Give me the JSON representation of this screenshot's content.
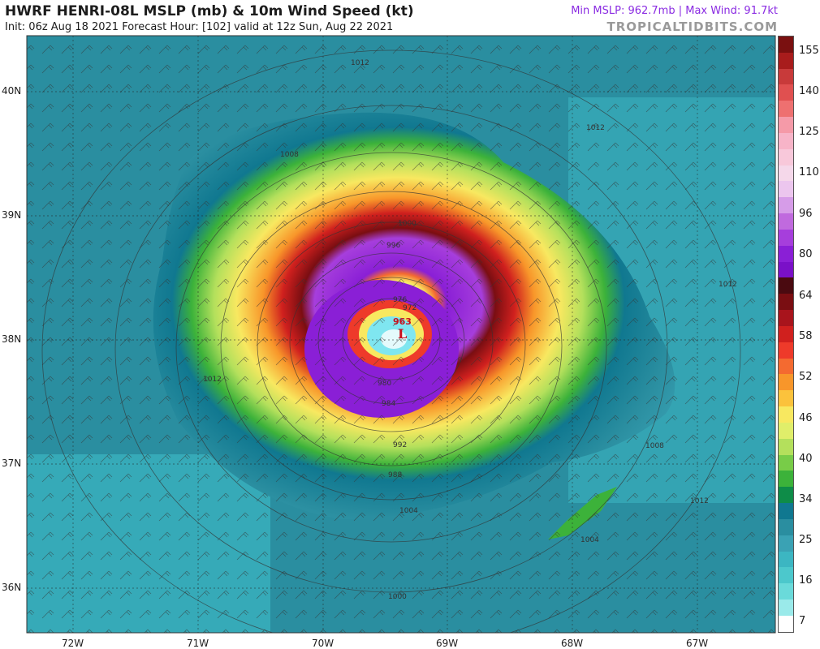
{
  "header": {
    "title": "HWRF HENRI-08L MSLP (mb) & 10m Wind Speed (kt)",
    "subtitle": "Init: 06z Aug 18 2021    Forecast Hour: [102]    valid at 12z Sun, Aug 22 2021",
    "stats": "Min MSLP: 962.7mb | Max Wind: 91.7kt",
    "watermark": "TROPICALTIDBITS.COM",
    "stats_color": "#8a2be2"
  },
  "map": {
    "center_marker": {
      "label": "L",
      "pressure": "963"
    },
    "latitude_labels": [
      "40N",
      "39N",
      "38N",
      "37N",
      "36N"
    ],
    "longitude_labels": [
      "72W",
      "71W",
      "70W",
      "69W",
      "68W",
      "67W"
    ],
    "isobar_labels": [
      "1012",
      "1012",
      "1008",
      "1004",
      "1000",
      "996",
      "992",
      "988",
      "984",
      "980",
      "976",
      "972",
      "1012",
      "1008",
      "1004",
      "1000",
      "1012",
      "1012"
    ]
  },
  "colorbar": {
    "labels": [
      "155",
      "140",
      "125",
      "110",
      "96",
      "80",
      "64",
      "58",
      "52",
      "46",
      "40",
      "34",
      "25",
      "16",
      "7"
    ],
    "colors": [
      "#7a1010",
      "#a81c1c",
      "#c83a3a",
      "#e05050",
      "#ee7070",
      "#f59aa8",
      "#f7b4c8",
      "#f8c8da",
      "#f5d8ea",
      "#ecc6ee",
      "#d69ce8",
      "#c06ade",
      "#a63edc",
      "#8a1fd6",
      "#7a10c8",
      "#4a0a10",
      "#7a0e12",
      "#a8141c",
      "#d0201e",
      "#ee3a2a",
      "#f46a30",
      "#f8962a",
      "#fbc23c",
      "#f8e860",
      "#e0ee6a",
      "#b4e05c",
      "#78cc48",
      "#3cb23a",
      "#0e8c48",
      "#107890",
      "#2a8ea0",
      "#3aa2b4",
      "#3cb6c2",
      "#4cc8cc",
      "#6adada",
      "#9aeaea",
      "#ffffff"
    ]
  }
}
